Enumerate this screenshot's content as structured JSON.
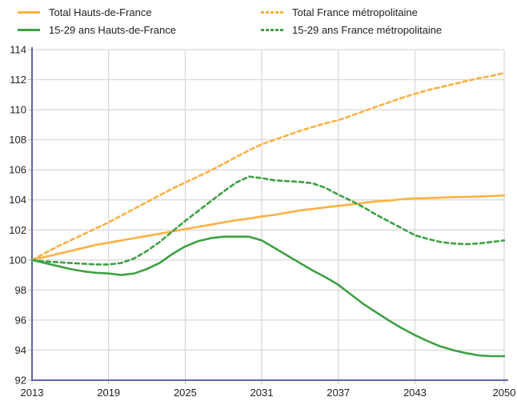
{
  "chart_data": {
    "type": "line",
    "title": "",
    "xlabel": "",
    "ylabel": "",
    "x_ticks": [
      2013,
      2019,
      2025,
      2031,
      2037,
      2043,
      2050
    ],
    "y_ticks": [
      92,
      94,
      96,
      98,
      100,
      102,
      104,
      106,
      108,
      110,
      112,
      114
    ],
    "xlim": [
      2013,
      2050
    ],
    "ylim": [
      92,
      114
    ],
    "grid": true,
    "legend_position": "top",
    "axis_color": "#6065A9",
    "grid_color": "#D9D9D9",
    "tick_color": "#BBBBBB",
    "tick_label_color": "#222222",
    "x": [
      2013,
      2014,
      2015,
      2016,
      2017,
      2018,
      2019,
      2020,
      2021,
      2022,
      2023,
      2024,
      2025,
      2026,
      2027,
      2028,
      2029,
      2030,
      2031,
      2032,
      2033,
      2034,
      2035,
      2036,
      2037,
      2038,
      2039,
      2040,
      2041,
      2042,
      2043,
      2044,
      2045,
      2046,
      2047,
      2048,
      2049,
      2050
    ],
    "series": [
      {
        "name": "Total Hauts-de-France",
        "color": "#FBB144",
        "dash": "solid",
        "values": [
          100.0,
          100.2,
          100.4,
          100.6,
          100.8,
          101.0,
          101.15,
          101.3,
          101.45,
          101.6,
          101.75,
          101.9,
          102.05,
          102.2,
          102.35,
          102.5,
          102.65,
          102.75,
          102.9,
          103.0,
          103.15,
          103.3,
          103.4,
          103.5,
          103.6,
          103.7,
          103.8,
          103.9,
          103.95,
          104.05,
          104.1,
          104.12,
          104.15,
          104.18,
          104.2,
          104.22,
          104.25,
          104.3
        ]
      },
      {
        "name": "15-29 ans Hauts-de-France",
        "color": "#3FA044",
        "dash": "solid",
        "values": [
          100.0,
          99.8,
          99.6,
          99.4,
          99.25,
          99.15,
          99.1,
          99.0,
          99.1,
          99.4,
          99.8,
          100.4,
          100.9,
          101.25,
          101.45,
          101.55,
          101.55,
          101.55,
          101.3,
          100.8,
          100.3,
          99.8,
          99.3,
          98.85,
          98.35,
          97.7,
          97.05,
          96.5,
          95.95,
          95.45,
          95.0,
          94.6,
          94.25,
          94.0,
          93.8,
          93.65,
          93.6,
          93.6
        ]
      },
      {
        "name": "Total France métropolitaine",
        "color": "#FBB144",
        "dash": "dashed",
        "values": [
          100.0,
          100.45,
          100.9,
          101.3,
          101.7,
          102.1,
          102.5,
          102.95,
          103.4,
          103.85,
          104.3,
          104.75,
          105.15,
          105.55,
          105.95,
          106.4,
          106.85,
          107.3,
          107.7,
          108.0,
          108.3,
          108.6,
          108.85,
          109.1,
          109.3,
          109.6,
          109.9,
          110.2,
          110.5,
          110.8,
          111.05,
          111.3,
          111.5,
          111.7,
          111.9,
          112.1,
          112.25,
          112.45
        ]
      },
      {
        "name": "15-29 ans France métropolitaine",
        "color": "#3FA044",
        "dash": "dashed",
        "values": [
          100.0,
          99.9,
          99.85,
          99.8,
          99.75,
          99.7,
          99.7,
          99.8,
          100.1,
          100.6,
          101.2,
          101.9,
          102.6,
          103.25,
          103.9,
          104.55,
          105.15,
          105.55,
          105.45,
          105.3,
          105.25,
          105.2,
          105.1,
          104.8,
          104.35,
          103.95,
          103.5,
          103.0,
          102.55,
          102.1,
          101.65,
          101.4,
          101.2,
          101.1,
          101.05,
          101.1,
          101.2,
          101.3
        ]
      }
    ]
  }
}
